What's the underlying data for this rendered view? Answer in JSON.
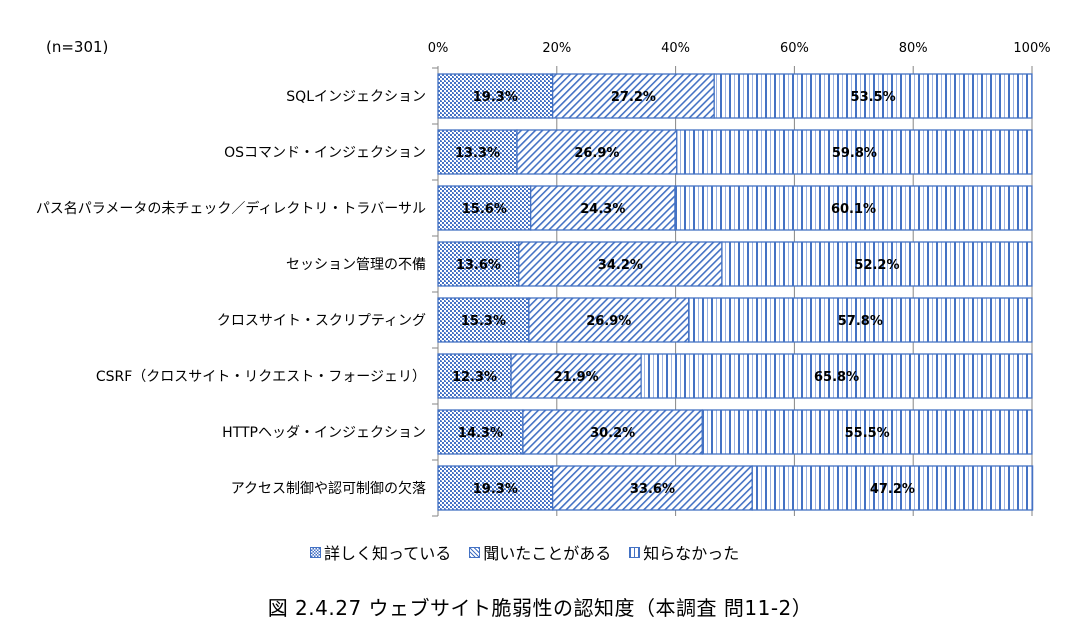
{
  "chart_data": {
    "type": "bar",
    "orientation": "horizontal",
    "stacked": true,
    "normalized": true,
    "sample_note": "(n=301)",
    "title": "図 2.4.27 ウェブサイト脆弱性の認知度（本調査 問11-2）",
    "xlabel": "",
    "ylabel": "",
    "xlim": [
      0,
      100
    ],
    "x_ticks": [
      "0%",
      "20%",
      "40%",
      "60%",
      "80%",
      "100%"
    ],
    "grid": true,
    "legend_position": "bottom",
    "categories": [
      "SQLインジェクション",
      "OSコマンド・インジェクション",
      "パス名パラメータの未チェック／ディレクトリ・トラバーサル",
      "セッション管理の不備",
      "クロスサイト・スクリプティング",
      "CSRF（クロスサイト・リクエスト・フォージェリ）",
      "HTTPヘッダ・インジェクション",
      "アクセス制御や認可制御の欠落"
    ],
    "series": [
      {
        "name": "詳しく知っている",
        "pattern": "checker",
        "color": "#4472c4",
        "values": [
          19.3,
          13.3,
          15.6,
          13.6,
          15.3,
          12.3,
          14.3,
          19.3
        ]
      },
      {
        "name": "聞いたことがある",
        "pattern": "diagonal",
        "color": "#4472c4",
        "values": [
          27.2,
          26.9,
          24.3,
          34.2,
          26.9,
          21.9,
          30.2,
          33.6
        ]
      },
      {
        "name": "知らなかった",
        "pattern": "vertical",
        "color": "#4472c4",
        "values": [
          53.5,
          59.8,
          60.1,
          52.2,
          57.8,
          65.8,
          55.5,
          47.2
        ]
      }
    ]
  }
}
